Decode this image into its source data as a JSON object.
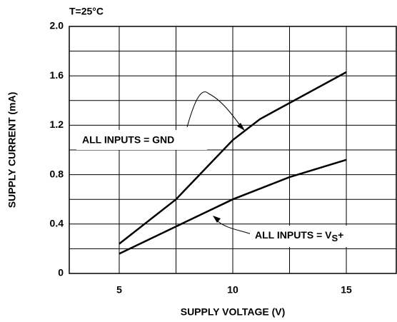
{
  "chart_data": {
    "type": "line",
    "title": "T=25°C",
    "xlabel": "SUPPLY VOLTAGE (V)",
    "ylabel": "SUPPLY CURRENT (mA)",
    "xlim": [
      2.8,
      17.2
    ],
    "xticks": [
      5,
      10,
      15
    ],
    "xminorticks": [
      7.5,
      12.5
    ],
    "ylim": [
      0,
      2.0
    ],
    "yticks": [
      0,
      0.4,
      0.8,
      1.2,
      1.6,
      {
        "value": 2.0,
        "label": "2.0"
      }
    ],
    "yminorticks": [
      0.2,
      0.6,
      1.0,
      1.4,
      1.8
    ],
    "grid": true,
    "series": [
      {
        "color": "#000000",
        "x": [
          5,
          7.5,
          10,
          11.2,
          12.5,
          15
        ],
        "values": [
          0.24,
          0.6,
          1.08,
          1.25,
          1.38,
          1.63
        ]
      },
      {
        "color": "#000000",
        "x": [
          5,
          7.5,
          10,
          12.5,
          15
        ],
        "values": [
          0.16,
          0.38,
          0.6,
          0.78,
          0.92
        ]
      }
    ],
    "annotations": [
      {
        "text": "ALL INPUTS = GND"
      },
      {
        "text": "ALL INPUTS = V",
        "sub": "S",
        "suffix": "+"
      }
    ]
  }
}
